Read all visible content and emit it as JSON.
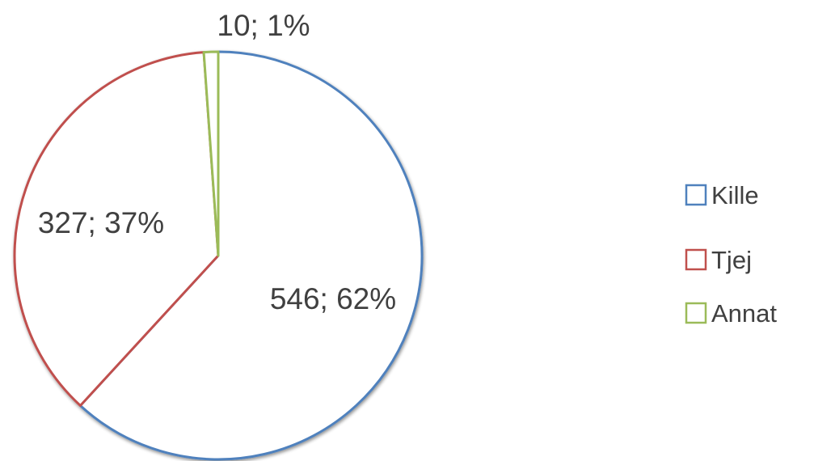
{
  "chart_data": {
    "type": "pie",
    "title": "",
    "categories": [
      "Kille",
      "Tjej",
      "Annat"
    ],
    "values": [
      546,
      327,
      10
    ],
    "percent_labels": [
      "62%",
      "37%",
      "1%"
    ],
    "data_labels": [
      "546; 62%",
      "327; 37%",
      "10; 1%"
    ],
    "colors": [
      "#4f81bd",
      "#c0504d",
      "#9bbb59"
    ],
    "slice_fill": "#ffffff",
    "legend": {
      "position": "right",
      "entries": [
        "Kille",
        "Tjej",
        "Annat"
      ]
    },
    "start_angle": "12 o'clock",
    "direction": "clockwise"
  }
}
